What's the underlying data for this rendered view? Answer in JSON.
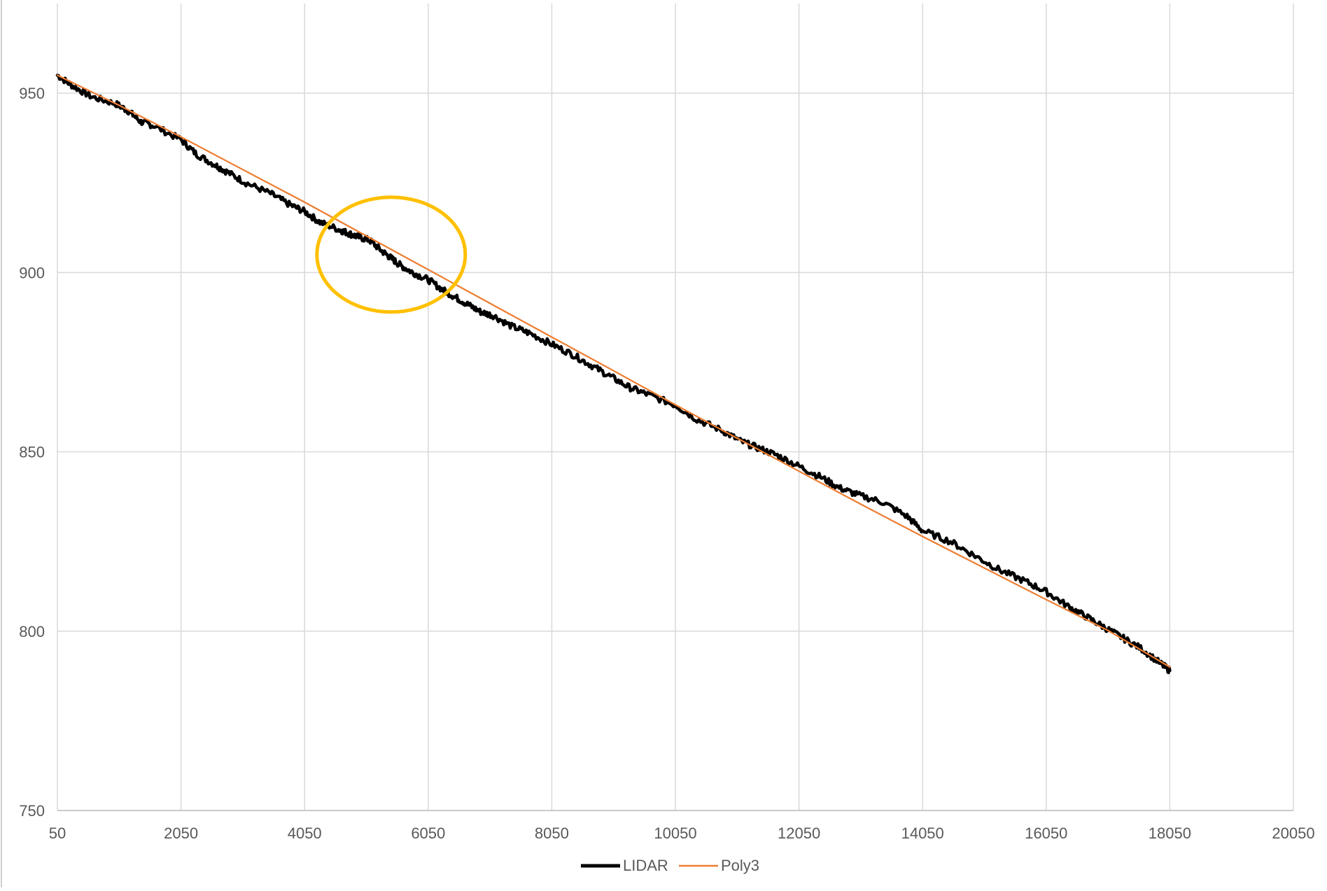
{
  "chart_data": {
    "type": "line",
    "title": "",
    "xlabel": "",
    "ylabel": "",
    "xlim": [
      50,
      20050
    ],
    "ylim": [
      750,
      975
    ],
    "x_ticks": [
      50,
      2050,
      4050,
      6050,
      8050,
      10050,
      12050,
      14050,
      16050,
      18050,
      20050
    ],
    "y_ticks": [
      750,
      800,
      850,
      900,
      950
    ],
    "grid": true,
    "legend_position": "bottom",
    "series": [
      {
        "name": "LIDAR",
        "color": "#000000",
        "x": [
          50,
          300,
          600,
          1000,
          1200,
          1400,
          1600,
          2050,
          2300,
          2600,
          2800,
          3100,
          3500,
          3800,
          4050,
          4300,
          4600,
          4750,
          4900,
          5100,
          5300,
          5450,
          5600,
          5800,
          6050,
          6300,
          6500,
          6700,
          6900,
          7100,
          7400,
          7700,
          8050,
          8400,
          8700,
          9000,
          9300,
          9600,
          10050,
          10400,
          10800,
          11100,
          11400,
          11700,
          12050,
          12400,
          12700,
          13000,
          13400,
          13800,
          14050,
          14500,
          14900,
          15300,
          15700,
          16050,
          16400,
          16700,
          17000,
          17300,
          17600,
          17900,
          18050
        ],
        "y": [
          955,
          952,
          949,
          947,
          945,
          942,
          941,
          937,
          933,
          930,
          928,
          925,
          922,
          919,
          917,
          914,
          912,
          911,
          910,
          909,
          906,
          904,
          902,
          900,
          898,
          895,
          893,
          891,
          889,
          888,
          885,
          883,
          880,
          877,
          874,
          871,
          868,
          866,
          863,
          859,
          856,
          853,
          851,
          849,
          846,
          843,
          840,
          838,
          836,
          832,
          828,
          825,
          821,
          817,
          814,
          811,
          807,
          804,
          801,
          798,
          795,
          791,
          789
        ]
      },
      {
        "name": "Poly3",
        "color": "#ED7D31",
        "x": [
          50,
          1050,
          2050,
          3050,
          4050,
          5050,
          6050,
          7050,
          8050,
          9050,
          10050,
          11050,
          12050,
          13050,
          14050,
          15050,
          16050,
          17050,
          18050
        ],
        "y": [
          955,
          946.6,
          937.8,
          928.7,
          919.6,
          910.2,
          900.8,
          891.4,
          882.0,
          872.6,
          863.1,
          853.8,
          844.6,
          835.4,
          826.4,
          817.6,
          808.8,
          800.2,
          790
        ]
      }
    ],
    "annotations": [
      {
        "type": "ellipse",
        "cx": 5450,
        "cy": 905,
        "rx": 1200,
        "ry": 16,
        "color": "#FFC000"
      }
    ]
  }
}
